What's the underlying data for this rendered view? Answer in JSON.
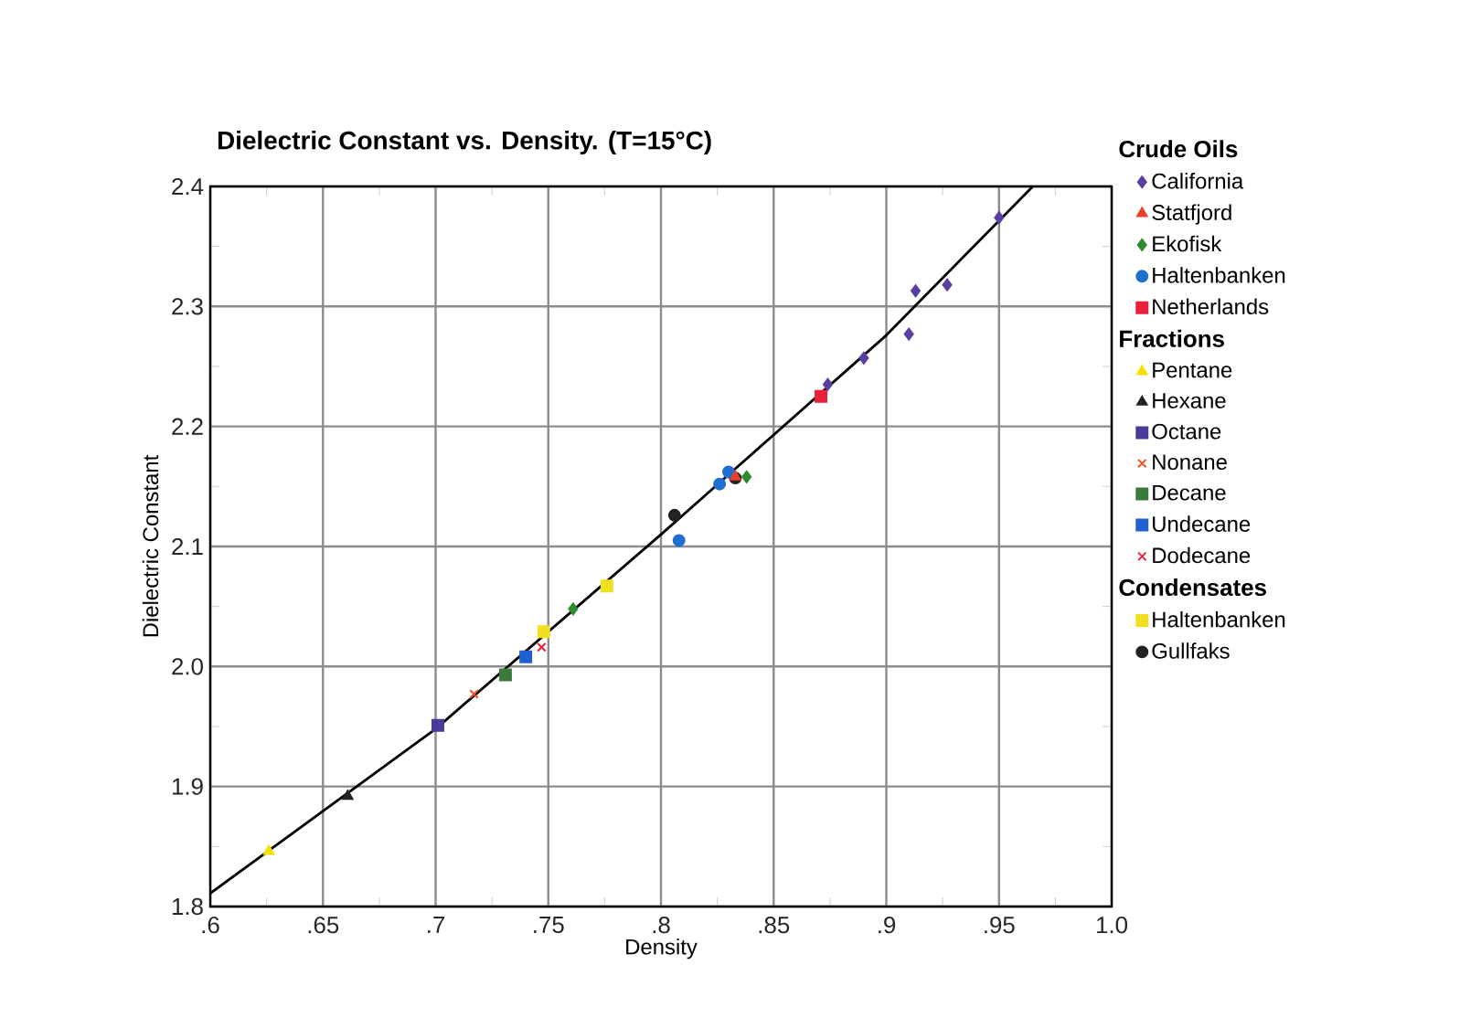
{
  "chart_data": {
    "type": "scatter",
    "title": "Dielectric Constant vs. Density. (T=15°C)",
    "xlabel": "Density",
    "ylabel": "Dielectric Constant",
    "xlim": [
      0.6,
      1.0
    ],
    "ylim": [
      1.8,
      2.4
    ],
    "xticks": [
      {
        "value": 0.6,
        "label": ".6"
      },
      {
        "value": 0.65,
        "label": ".65"
      },
      {
        "value": 0.7,
        "label": ".7"
      },
      {
        "value": 0.75,
        "label": ".75"
      },
      {
        "value": 0.8,
        "label": ".8"
      },
      {
        "value": 0.85,
        "label": ".85"
      },
      {
        "value": 0.9,
        "label": ".9"
      },
      {
        "value": 0.95,
        "label": ".95"
      },
      {
        "value": 1.0,
        "label": "1.0"
      }
    ],
    "yticks": [
      {
        "value": 1.8,
        "label": "1.8"
      },
      {
        "value": 1.9,
        "label": "1.9"
      },
      {
        "value": 2.0,
        "label": "2.0"
      },
      {
        "value": 2.1,
        "label": "2.1"
      },
      {
        "value": 2.2,
        "label": "2.2"
      },
      {
        "value": 2.3,
        "label": "2.3"
      },
      {
        "value": 2.4,
        "label": "2.4"
      }
    ],
    "grid": true,
    "legend": "right",
    "annotations": [
      "Crude Oils",
      "Fractions",
      "Condensates"
    ],
    "series": [
      {
        "type": "line",
        "color": "#000000",
        "x": [
          0.6,
          0.7,
          0.8,
          0.9,
          0.965
        ],
        "values": [
          1.811,
          1.948,
          2.11,
          2.276,
          2.4
        ]
      },
      {
        "name": "California",
        "color": "#5b3fa0",
        "marker": "diamond",
        "x": [
          0.95,
          0.913,
          0.927,
          0.91,
          0.89,
          0.874
        ],
        "values": [
          2.374,
          2.313,
          2.318,
          2.277,
          2.257,
          2.235
        ]
      },
      {
        "name": "Statfjord",
        "color": "#e8402a",
        "marker": "triangle",
        "x": [
          0.833
        ],
        "values": [
          2.158
        ]
      },
      {
        "name": "Ekofisk",
        "color": "#2e8b2e",
        "marker": "diamond",
        "x": [
          0.838,
          0.761
        ],
        "values": [
          2.158,
          2.048
        ]
      },
      {
        "name": "Haltenbanken",
        "color": "#1f6fd0",
        "marker": "circle",
        "x": [
          0.83,
          0.826,
          0.808
        ],
        "values": [
          2.162,
          2.152,
          2.105
        ]
      },
      {
        "name": "Netherlands",
        "color": "#e8203a",
        "marker": "square",
        "x": [
          0.871
        ],
        "values": [
          2.225
        ]
      },
      {
        "name": "Pentane",
        "color": "#f5e000",
        "marker": "triangle",
        "x": [
          0.626
        ],
        "values": [
          1.846
        ]
      },
      {
        "name": "Hexane",
        "color": "#222222",
        "marker": "triangle",
        "x": [
          0.661
        ],
        "values": [
          1.892
        ]
      },
      {
        "name": "Octane",
        "color": "#4a3a9a",
        "marker": "square",
        "x": [
          0.701
        ],
        "values": [
          1.951
        ]
      },
      {
        "name": "Nonane",
        "color": "#f05020",
        "marker": "cross",
        "x": [
          0.717
        ],
        "values": [
          1.977
        ]
      },
      {
        "name": "Decane",
        "color": "#3a7a3a",
        "marker": "square",
        "x": [
          0.731
        ],
        "values": [
          1.993
        ]
      },
      {
        "name": "Undecane",
        "color": "#2060d0",
        "marker": "square",
        "x": [
          0.74
        ],
        "values": [
          2.008
        ]
      },
      {
        "name": "Dodecane",
        "color": "#e82040",
        "marker": "cross",
        "x": [
          0.747
        ],
        "values": [
          2.016
        ]
      },
      {
        "name": "Haltenbanken",
        "color": "#f0e020",
        "marker": "square",
        "x": [
          0.748,
          0.776
        ],
        "values": [
          2.029,
          2.067
        ]
      },
      {
        "name": "Gullfaks",
        "color": "#222222",
        "marker": "circle",
        "x": [
          0.833,
          0.806
        ],
        "values": [
          2.157,
          2.126
        ]
      }
    ]
  }
}
